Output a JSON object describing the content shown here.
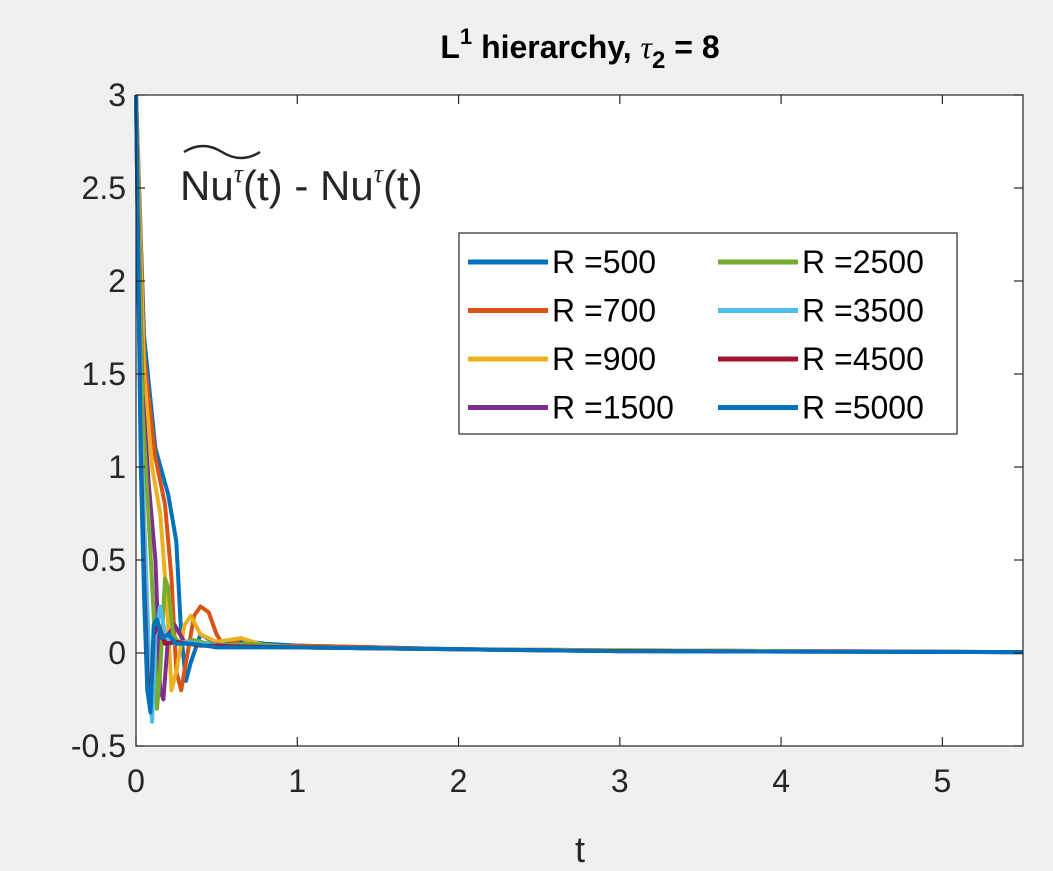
{
  "chart_data": {
    "type": "line",
    "title": {
      "base": "L",
      "sup": "1",
      "mid": " hierarchy, ",
      "greek": "τ",
      "sub": "2",
      "tail": " = 8"
    },
    "xlabel": "t",
    "ylabel": "",
    "annotation": {
      "main": "Nu",
      "sup": "τ",
      "paren": "(t) - Nu",
      "sup2": "τ",
      "end": "(t)"
    },
    "xlim": [
      0,
      5.5
    ],
    "ylim": [
      -0.5,
      3
    ],
    "xticks": [
      0,
      1,
      2,
      3,
      4,
      5
    ],
    "xtick_labels": [
      "0",
      "1",
      "2",
      "3",
      "4",
      "5"
    ],
    "yticks": [
      -0.5,
      0,
      0.5,
      1,
      1.5,
      2,
      2.5,
      3
    ],
    "ytick_labels": [
      "-0.5",
      "0",
      "0.5",
      "1",
      "1.5",
      "2",
      "2.5",
      "3"
    ],
    "grid": false,
    "legend": {
      "position": "top-right",
      "columns": 2
    },
    "series": [
      {
        "name": "R =500",
        "color": "#0072BD",
        "points": [
          [
            0,
            3
          ],
          [
            0.05,
            1.7
          ],
          [
            0.12,
            1.1
          ],
          [
            0.2,
            0.85
          ],
          [
            0.25,
            0.6
          ],
          [
            0.28,
            0.1
          ],
          [
            0.31,
            -0.15
          ],
          [
            0.34,
            -0.05
          ],
          [
            0.4,
            0.1
          ],
          [
            0.5,
            0.05
          ],
          [
            0.6,
            0.07
          ],
          [
            0.8,
            0.05
          ],
          [
            1.0,
            0.04
          ],
          [
            1.5,
            0.03
          ],
          [
            2.0,
            0.02
          ],
          [
            3.0,
            0.015
          ],
          [
            4.0,
            0.01
          ],
          [
            5.5,
            0.005
          ]
        ]
      },
      {
        "name": "R =700",
        "color": "#D95319",
        "points": [
          [
            0,
            3
          ],
          [
            0.05,
            1.6
          ],
          [
            0.12,
            1.05
          ],
          [
            0.18,
            0.8
          ],
          [
            0.22,
            0.4
          ],
          [
            0.25,
            -0.1
          ],
          [
            0.28,
            -0.2
          ],
          [
            0.32,
            0.0
          ],
          [
            0.36,
            0.2
          ],
          [
            0.4,
            0.25
          ],
          [
            0.45,
            0.22
          ],
          [
            0.5,
            0.1
          ],
          [
            0.55,
            0.03
          ],
          [
            0.65,
            0.08
          ],
          [
            0.8,
            0.03
          ],
          [
            1.0,
            0.04
          ],
          [
            2.0,
            0.02
          ],
          [
            3.0,
            0.015
          ],
          [
            4.0,
            0.01
          ],
          [
            5.5,
            0.005
          ]
        ]
      },
      {
        "name": "R =900",
        "color": "#EDB120",
        "points": [
          [
            0,
            3
          ],
          [
            0.05,
            1.5
          ],
          [
            0.1,
            1.0
          ],
          [
            0.15,
            0.75
          ],
          [
            0.19,
            0.3
          ],
          [
            0.22,
            -0.2
          ],
          [
            0.25,
            -0.1
          ],
          [
            0.3,
            0.15
          ],
          [
            0.34,
            0.2
          ],
          [
            0.4,
            0.1
          ],
          [
            0.5,
            0.06
          ],
          [
            0.65,
            0.08
          ],
          [
            0.8,
            0.04
          ],
          [
            1.0,
            0.03
          ],
          [
            2.0,
            0.02
          ],
          [
            3.0,
            0.015
          ],
          [
            4.0,
            0.01
          ],
          [
            5.5,
            0.005
          ]
        ]
      },
      {
        "name": "R =1500",
        "color": "#7E2F8E",
        "points": [
          [
            0,
            3
          ],
          [
            0.04,
            1.4
          ],
          [
            0.08,
            0.9
          ],
          [
            0.12,
            0.5
          ],
          [
            0.15,
            -0.2
          ],
          [
            0.17,
            -0.25
          ],
          [
            0.2,
            0.1
          ],
          [
            0.24,
            0.15
          ],
          [
            0.3,
            0.06
          ],
          [
            0.4,
            0.05
          ],
          [
            0.6,
            0.04
          ],
          [
            1.0,
            0.03
          ],
          [
            2.0,
            0.02
          ],
          [
            3.0,
            0.01
          ],
          [
            5.5,
            0.005
          ]
        ]
      },
      {
        "name": "R =2500",
        "color": "#77AC30",
        "points": [
          [
            0,
            3
          ],
          [
            0.04,
            1.3
          ],
          [
            0.08,
            0.7
          ],
          [
            0.11,
            0.2
          ],
          [
            0.13,
            -0.3
          ],
          [
            0.15,
            -0.1
          ],
          [
            0.18,
            0.4
          ],
          [
            0.2,
            0.35
          ],
          [
            0.23,
            0.1
          ],
          [
            0.27,
            0.05
          ],
          [
            0.35,
            0.07
          ],
          [
            0.5,
            0.04
          ],
          [
            0.7,
            0.05
          ],
          [
            1.0,
            0.03
          ],
          [
            2.0,
            0.02
          ],
          [
            3.0,
            0.01
          ],
          [
            5.5,
            0.005
          ]
        ]
      },
      {
        "name": "R =3500",
        "color": "#4DBEEE",
        "points": [
          [
            0,
            3
          ],
          [
            0.03,
            1.2
          ],
          [
            0.06,
            0.5
          ],
          [
            0.08,
            0.0
          ],
          [
            0.1,
            -0.37
          ],
          [
            0.12,
            0.1
          ],
          [
            0.15,
            0.25
          ],
          [
            0.18,
            0.1
          ],
          [
            0.22,
            0.05
          ],
          [
            0.3,
            0.06
          ],
          [
            0.5,
            0.04
          ],
          [
            1.0,
            0.03
          ],
          [
            2.0,
            0.02
          ],
          [
            3.0,
            0.01
          ],
          [
            5.5,
            0.005
          ]
        ]
      },
      {
        "name": "R =4500",
        "color": "#A2142F",
        "points": [
          [
            0,
            3
          ],
          [
            0.03,
            1.1
          ],
          [
            0.05,
            0.4
          ],
          [
            0.07,
            -0.1
          ],
          [
            0.09,
            -0.3
          ],
          [
            0.11,
            0.1
          ],
          [
            0.14,
            0.15
          ],
          [
            0.18,
            0.05
          ],
          [
            0.25,
            0.06
          ],
          [
            0.4,
            0.04
          ],
          [
            1.0,
            0.03
          ],
          [
            2.0,
            0.02
          ],
          [
            3.0,
            0.01
          ],
          [
            5.5,
            0.005
          ]
        ]
      },
      {
        "name": "R =5000",
        "color": "#0072BD",
        "points": [
          [
            0,
            3
          ],
          [
            0.03,
            1.0
          ],
          [
            0.05,
            0.3
          ],
          [
            0.07,
            -0.2
          ],
          [
            0.09,
            -0.32
          ],
          [
            0.11,
            0.15
          ],
          [
            0.13,
            0.18
          ],
          [
            0.16,
            0.08
          ],
          [
            0.2,
            0.1
          ],
          [
            0.25,
            0.05
          ],
          [
            0.35,
            0.05
          ],
          [
            0.5,
            0.03
          ],
          [
            1.0,
            0.03
          ],
          [
            2.0,
            0.02
          ],
          [
            3.0,
            0.01
          ],
          [
            5.5,
            0.005
          ]
        ]
      }
    ]
  }
}
